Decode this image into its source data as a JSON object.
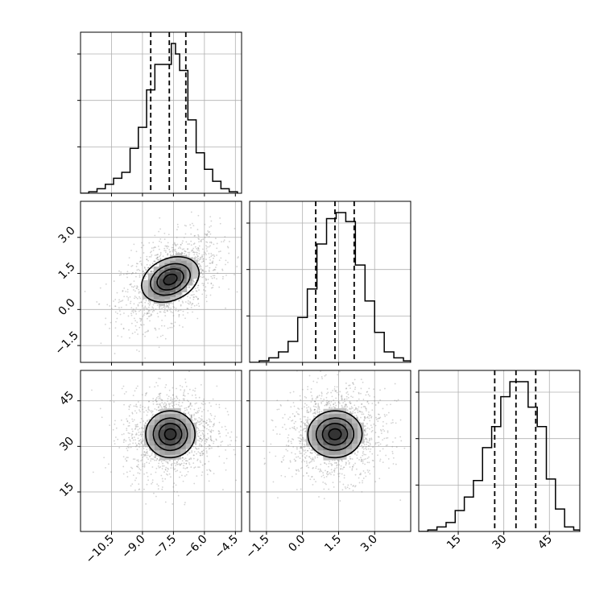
{
  "chart_data": {
    "type": "corner",
    "parameters": [
      "",
      "",
      ""
    ],
    "grid": true,
    "quantiles": [
      0.16,
      0.5,
      0.84
    ],
    "ranges": [
      [
        -12,
        -4.2
      ],
      [
        -2.2,
        4.5
      ],
      [
        2,
        55
      ]
    ],
    "tick_values": [
      [
        -10.5,
        -9.0,
        -7.5,
        -6.0,
        -4.5
      ],
      [
        -1.5,
        0.0,
        1.5,
        3.0
      ],
      [
        15,
        30,
        45
      ]
    ],
    "tick_labels": [
      [
        "−10.5",
        "−9.0",
        "−7.5",
        "−6.0",
        "−4.5"
      ],
      [
        "−1.5",
        "0.0",
        "1.5",
        "3.0"
      ],
      [
        "15",
        "30",
        "45"
      ]
    ],
    "diag_y_gridlines": [
      0.31,
      0.62,
      0.93
    ],
    "marginals": [
      {
        "param": 0,
        "bin_edges": [
          -12.0,
          -11.6,
          -11.2,
          -10.8,
          -10.4,
          -10.0,
          -9.6,
          -9.2,
          -8.8,
          -8.4,
          -8.0,
          -7.6,
          -7.4,
          -7.2,
          -6.8,
          -6.4,
          -6.0,
          -5.6,
          -5.2,
          -4.8,
          -4.4
        ],
        "heights": [
          0.0,
          0.01,
          0.03,
          0.06,
          0.1,
          0.14,
          0.3,
          0.44,
          0.69,
          0.86,
          0.86,
          1.0,
          0.93,
          0.82,
          0.49,
          0.27,
          0.16,
          0.08,
          0.03,
          0.01
        ],
        "quantile_values": [
          -8.6,
          -7.7,
          -6.9
        ]
      },
      {
        "param": 1,
        "bin_edges": [
          -2.2,
          -1.8,
          -1.4,
          -1.0,
          -0.6,
          -0.2,
          0.2,
          0.6,
          1.0,
          1.4,
          1.8,
          2.2,
          2.6,
          3.0,
          3.4,
          3.8,
          4.2,
          4.5
        ],
        "heights": [
          0.0,
          0.01,
          0.03,
          0.07,
          0.14,
          0.3,
          0.49,
          0.79,
          0.96,
          1.0,
          0.94,
          0.65,
          0.41,
          0.2,
          0.07,
          0.03,
          0.01
        ],
        "quantile_values": [
          0.55,
          1.35,
          2.15
        ]
      },
      {
        "param": 2,
        "bin_edges": [
          2.0,
          5.0,
          8.0,
          11.0,
          14.0,
          17.0,
          20.0,
          23.0,
          26.0,
          29.0,
          32.0,
          35.0,
          38.0,
          41.0,
          44.0,
          47.0,
          50.0,
          53.0,
          55.0
        ],
        "heights": [
          0.0,
          0.01,
          0.03,
          0.06,
          0.14,
          0.23,
          0.34,
          0.56,
          0.7,
          0.9,
          1.0,
          1.0,
          0.83,
          0.7,
          0.35,
          0.15,
          0.03,
          0.01
        ],
        "quantile_values": [
          27.0,
          34.0,
          40.5
        ]
      }
    ],
    "panels_2d": [
      {
        "x_param": 0,
        "y_param": 1,
        "center": [
          -7.65,
          1.25
        ],
        "sigma": [
          0.95,
          0.75
        ],
        "correlation": 0.45,
        "contour_levels": [
          0.3,
          0.6,
          0.9,
          1.3
        ]
      },
      {
        "x_param": 0,
        "y_param": 2,
        "center": [
          -7.65,
          34.0
        ],
        "sigma": [
          0.9,
          6.0
        ],
        "correlation": 0.05,
        "contour_levels": [
          0.3,
          0.6,
          0.9,
          1.3
        ]
      },
      {
        "x_param": 1,
        "y_param": 2,
        "center": [
          1.35,
          34.0
        ],
        "sigma": [
          0.85,
          6.0
        ],
        "correlation": 0.05,
        "contour_levels": [
          0.3,
          0.6,
          0.9,
          1.3
        ]
      }
    ]
  }
}
